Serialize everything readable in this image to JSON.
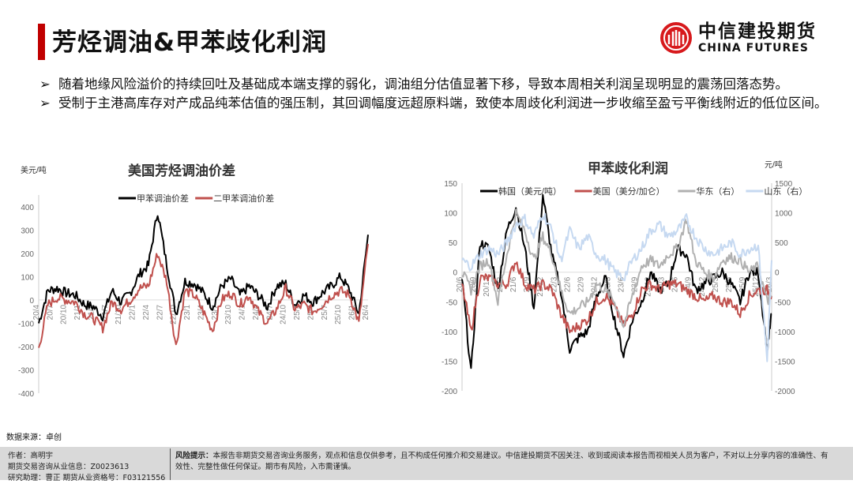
{
  "header": {
    "title": "芳烃调油&甲苯歧化利润",
    "logo_cn": "中信建投期货",
    "logo_en": "CHINA FUTURES"
  },
  "bullets": [
    "随着地缘风险溢价的持续回吐及基础成本端支撑的弱化，调油组分估值显著下移，导致本周相关利润呈现明显的震荡回落态势。",
    "受制于主港高库存对产成品纯苯估值的强压制，其回调幅度远超原料端，致使本周歧化利润进一步收缩至盈亏平衡线附近的低位区间。"
  ],
  "bullet_marker": "➢",
  "source": "数据来源：卓创",
  "footer": {
    "author": "作者：高明宇",
    "license": "期货交易咨询从业信息：Z0023613",
    "assistant": "研究助理：曹正  期货从业资格号：F03121556",
    "risk_label": "风险提示：",
    "risk_text": "本报告非期货交易咨询业务服务，观点和信息仅供参考，且不构成任何推介和交易建议。中信建投期货不因关注、收到或阅读本报告而视相关人员为客户，不对以上分享内容的准确性、有效性、完整性做任何保证。期市有风险，入市需谨慎。"
  },
  "colors": {
    "accent": "#c00000",
    "black": "#000000",
    "red": "#c0504d",
    "gray": "#b0b0b0",
    "lightblue": "#c6d9f1"
  },
  "chart_data": [
    {
      "type": "line",
      "title": "美国芳烃调油价差",
      "ylabel": "美元/吨",
      "ylim": [
        -400,
        450
      ],
      "yticks": [
        -400,
        -300,
        -200,
        -100,
        0,
        100,
        200,
        300,
        400
      ],
      "xticks": [
        "20/4",
        "20/7",
        "20/10",
        "21/1",
        "21/4",
        "21/7",
        "21/10",
        "22/1",
        "22/4",
        "22/7",
        "22/10",
        "23/1",
        "23/4",
        "23/7",
        "23/10",
        "24/1",
        "24/4",
        "24/7",
        "24/10",
        "25/1",
        "25/4",
        "25/7",
        "25/10",
        "26/1",
        "26/4"
      ],
      "x_months_from_20_4": [
        0,
        2,
        4,
        6,
        8,
        10,
        12,
        14,
        16,
        18,
        20,
        22,
        24,
        26,
        28,
        30,
        32,
        34,
        36,
        38,
        40,
        42,
        44,
        46,
        48,
        50,
        52,
        54,
        56,
        58,
        60,
        62,
        64,
        66,
        68,
        70,
        72
      ],
      "legend_position": "top",
      "series": [
        {
          "name": "甲苯调油价差",
          "color": "#000000",
          "values": [
            -100,
            40,
            50,
            30,
            20,
            -20,
            -30,
            -70,
            40,
            -10,
            30,
            110,
            150,
            380,
            150,
            -60,
            80,
            70,
            30,
            -30,
            60,
            90,
            20,
            60,
            20,
            -30,
            60,
            70,
            -20,
            20,
            -10,
            30,
            60,
            100,
            40,
            -60,
            280
          ]
        },
        {
          "name": "二甲苯调油价差",
          "color": "#c0504d",
          "values": [
            -210,
            -20,
            10,
            0,
            -10,
            -60,
            -80,
            -120,
            -10,
            -40,
            0,
            50,
            60,
            200,
            80,
            -200,
            40,
            20,
            -50,
            -130,
            0,
            30,
            -20,
            20,
            -50,
            -100,
            -40,
            50,
            -40,
            -20,
            -50,
            -20,
            20,
            40,
            20,
            -100,
            240
          ]
        }
      ]
    },
    {
      "type": "line",
      "title": "甲苯歧化利润",
      "ylabel_right": "元/吨",
      "ylim": [
        -200,
        150
      ],
      "ylim_right": [
        -2000,
        1500
      ],
      "yticks": [
        -200,
        -150,
        -100,
        -50,
        0,
        50,
        100,
        150
      ],
      "yticks_right": [
        -2000,
        -1500,
        -1000,
        -500,
        0,
        500,
        1000,
        1500
      ],
      "xticks": [
        "20/6",
        "20/9",
        "20/12",
        "21/3",
        "21/6",
        "21/9",
        "21/12",
        "22/3",
        "22/6",
        "22/9",
        "22/12",
        "23/3",
        "23/6",
        "23/9",
        "23/12",
        "24/3",
        "24/6",
        "24/9",
        "24/12",
        "25/3",
        "25/6",
        "25/9",
        "25/12",
        "26/3"
      ],
      "x_months_from_20_6": [
        0,
        2,
        4,
        6,
        8,
        10,
        12,
        14,
        16,
        18,
        20,
        22,
        24,
        26,
        28,
        30,
        32,
        34,
        36,
        38,
        40,
        42,
        44,
        46,
        48,
        50,
        52,
        54,
        56,
        58,
        60,
        62,
        64,
        66,
        68,
        69
      ],
      "legend_position": "top",
      "series": [
        {
          "name": "韩国（美元/吨）",
          "axis": "left",
          "color": "#000000",
          "values": [
            -10,
            -170,
            50,
            40,
            -30,
            70,
            110,
            40,
            -60,
            130,
            30,
            -30,
            -130,
            -110,
            -100,
            -40,
            -10,
            -80,
            -140,
            -80,
            -50,
            0,
            -30,
            -20,
            40,
            30,
            -30,
            -20,
            -10,
            0,
            -20,
            -50,
            0,
            0,
            -130,
            -70
          ]
        },
        {
          "name": "美国（美分/加仑）",
          "axis": "left",
          "color": "#c0504d",
          "values": [
            -20,
            -100,
            -10,
            -10,
            -20,
            -20,
            20,
            -20,
            -30,
            -20,
            -30,
            -70,
            -100,
            -90,
            -80,
            -50,
            -40,
            -60,
            -90,
            -70,
            -30,
            -20,
            -30,
            -20,
            -20,
            -30,
            -40,
            -50,
            -40,
            -50,
            -50,
            -70,
            -40,
            -30,
            -30,
            -40
          ]
        },
        {
          "name": "华东（右）",
          "axis": "right",
          "color": "#b0b0b0",
          "values": [
            0,
            -300,
            100,
            200,
            -500,
            300,
            1000,
            700,
            200,
            600,
            300,
            -300,
            -700,
            -600,
            -500,
            -200,
            -300,
            -500,
            -900,
            -400,
            100,
            200,
            100,
            300,
            400,
            900,
            200,
            0,
            -100,
            200,
            250,
            200,
            0,
            100,
            -500,
            -400
          ]
        },
        {
          "name": "山东（右）",
          "axis": "right",
          "color": "#c6d9f1",
          "values": [
            200,
            100,
            300,
            400,
            300,
            500,
            800,
            900,
            600,
            1000,
            700,
            200,
            700,
            400,
            600,
            300,
            200,
            0,
            -100,
            200,
            400,
            700,
            800,
            600,
            700,
            900,
            600,
            400,
            300,
            400,
            500,
            300,
            400,
            450,
            -1500,
            200
          ]
        }
      ]
    }
  ]
}
